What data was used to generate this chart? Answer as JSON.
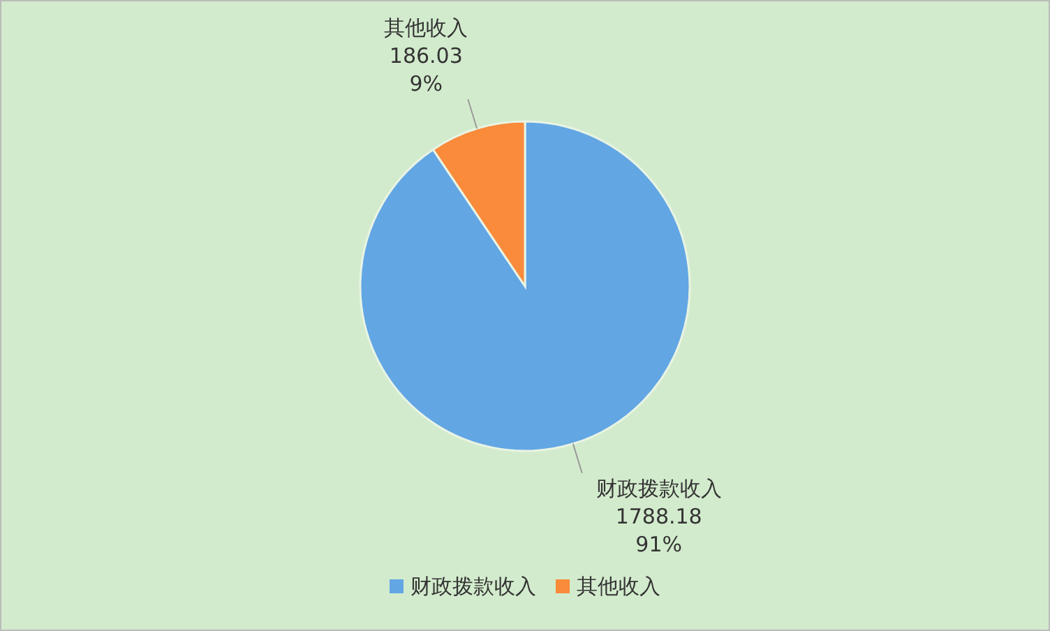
{
  "chart_data": {
    "type": "pie",
    "categories": [
      "财政拨款收入",
      "其他收入"
    ],
    "values": [
      1788.18,
      186.03
    ],
    "colors": [
      "#62a6e4",
      "#f98b3b"
    ],
    "value_labels": [
      "1788.18\n91%",
      "186.03\n9%"
    ],
    "legend": "bottom"
  }
}
